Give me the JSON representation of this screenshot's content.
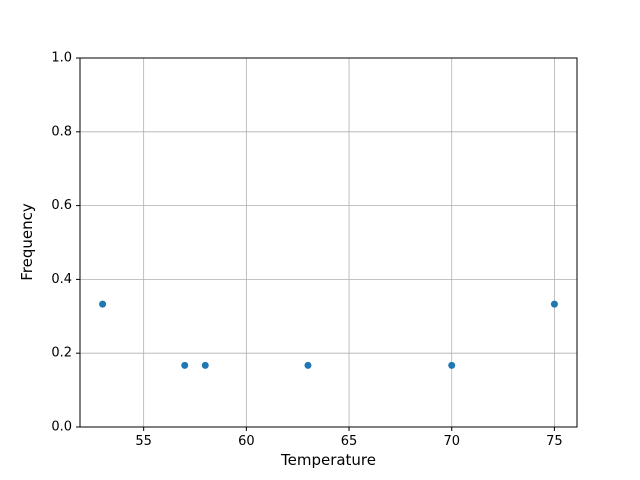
{
  "chart_data": {
    "type": "scatter",
    "title": "",
    "xlabel": "Temperature",
    "ylabel": "Frequency",
    "x": [
      53,
      57,
      58,
      63,
      70,
      75
    ],
    "y": [
      0.333,
      0.167,
      0.167,
      0.167,
      0.167,
      0.333
    ],
    "xlim": [
      51.9,
      76.1
    ],
    "ylim": [
      0.0,
      1.0
    ],
    "xtick_values": [
      55,
      60,
      65,
      70,
      75
    ],
    "xtick_labels": [
      "55",
      "60",
      "65",
      "70",
      "75"
    ],
    "ytick_values": [
      0.0,
      0.2,
      0.4,
      0.6,
      0.8,
      1.0
    ],
    "ytick_labels": [
      "0.0",
      "0.2",
      "0.4",
      "0.6",
      "0.8",
      "1.0"
    ],
    "grid": true,
    "legend": "none",
    "colors": {
      "marker": "#1f77b4",
      "grid": "#b0b0b0",
      "spine": "#000000",
      "tick": "#000000",
      "text": "#000000",
      "background": "#ffffff"
    }
  }
}
